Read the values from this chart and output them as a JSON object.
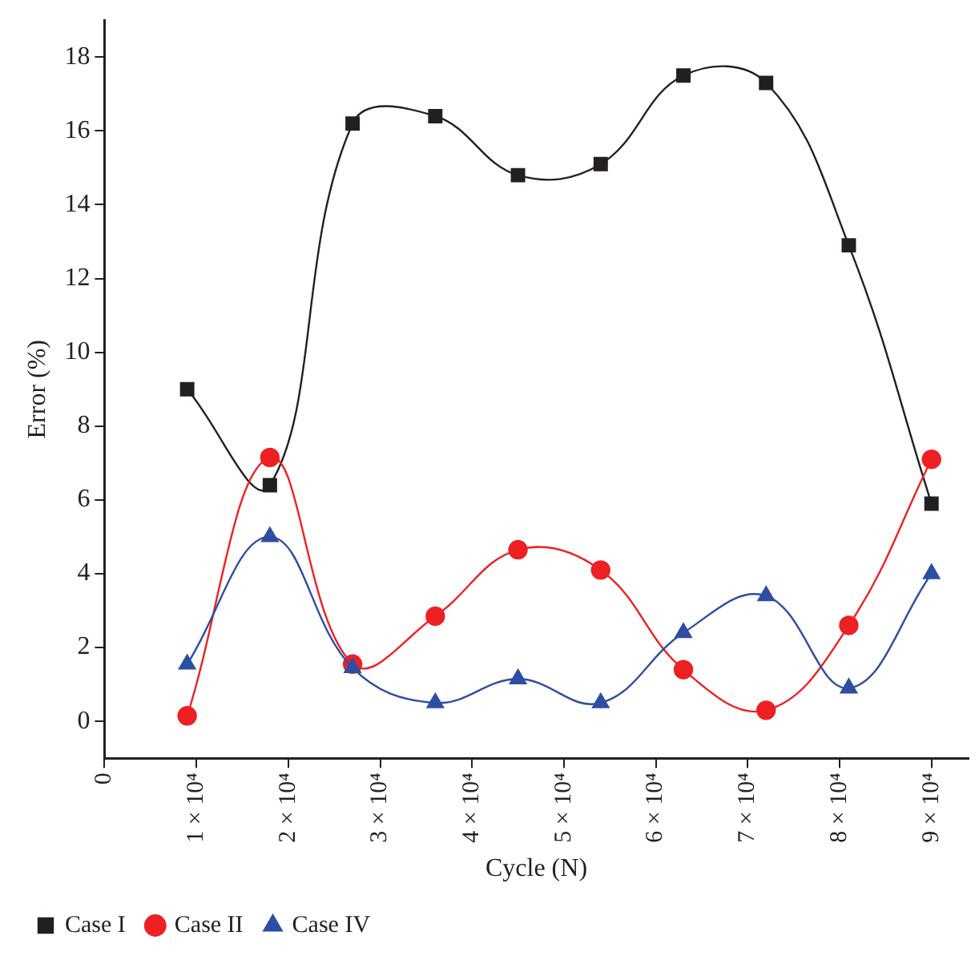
{
  "chart_data": {
    "type": "line",
    "xlabel": "Cycle (N)",
    "ylabel": "Error (%)",
    "x": [
      9000,
      18000,
      27000,
      36000,
      45000,
      54000,
      63000,
      72000,
      81000,
      90000
    ],
    "xlim": [
      0,
      94000
    ],
    "xticks": [
      0,
      {
        "value": 10000,
        "label": "1 × 10⁴"
      },
      {
        "value": 20000,
        "label": "2 × 10⁴"
      },
      {
        "value": 30000,
        "label": "3 × 10⁴"
      },
      {
        "value": 40000,
        "label": "4 × 10⁴"
      },
      {
        "value": 50000,
        "label": "5 × 10⁴"
      },
      {
        "value": 60000,
        "label": "6 × 10⁴"
      },
      {
        "value": 70000,
        "label": "7 × 10⁴"
      },
      {
        "value": 80000,
        "label": "8 × 10⁴"
      },
      {
        "value": 90000,
        "label": "9 × 10⁴"
      }
    ],
    "ylim": [
      -1,
      19
    ],
    "yticks": [
      0,
      2,
      4,
      6,
      8,
      10,
      12,
      14,
      16,
      18
    ],
    "series": [
      {
        "name": "Case I",
        "color": "#231f20",
        "marker": "square",
        "values": [
          9.0,
          6.4,
          16.2,
          16.4,
          14.8,
          15.1,
          17.5,
          17.3,
          12.9,
          5.9
        ]
      },
      {
        "name": "Case II",
        "color": "#ed2024",
        "marker": "circle",
        "values": [
          0.15,
          7.15,
          1.55,
          2.85,
          4.65,
          4.1,
          1.4,
          0.3,
          2.6,
          7.1
        ]
      },
      {
        "name": "Case IV",
        "color": "#2e4ea2",
        "marker": "triangle",
        "values": [
          1.55,
          5.0,
          1.45,
          0.5,
          1.15,
          0.5,
          2.4,
          3.4,
          0.9,
          4.0
        ]
      }
    ],
    "grid": false,
    "legend": "bottom left",
    "line_style": "solid"
  }
}
